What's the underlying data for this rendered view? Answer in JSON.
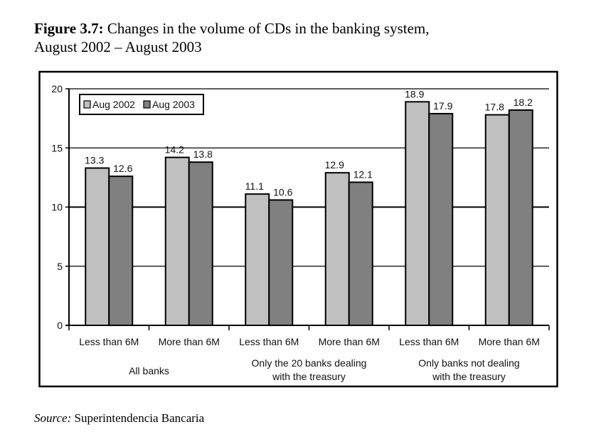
{
  "figure": {
    "label": "Figure 3.7:",
    "title_line1": " Changes in the volume of CDs in the banking system,",
    "title_line2": "August 2002 – August 2003"
  },
  "source": {
    "label": "Source:",
    "text": " Superintendencia Bancaria"
  },
  "chart_data": {
    "type": "bar",
    "title": "Changes in the volume of CDs in the banking system, August 2002 – August 2003",
    "xlabel": "",
    "ylabel": "",
    "ylim": [
      0,
      20
    ],
    "yticks": [
      0,
      5,
      10,
      15,
      20
    ],
    "grid": true,
    "legend_position": "top-left",
    "categories": [
      "Less than 6M",
      "More than 6M",
      "Less than 6M",
      "More than 6M",
      "Less than 6M",
      "More than 6M"
    ],
    "groups": [
      {
        "label_lines": [
          "All banks"
        ]
      },
      {
        "label_lines": [
          "Only the 20 banks dealing",
          "with the treasury"
        ]
      },
      {
        "label_lines": [
          "Only banks not dealing",
          "with the treasury"
        ]
      }
    ],
    "series": [
      {
        "name": "Aug 2002",
        "color": "#c0c0c0",
        "values": [
          13.3,
          14.2,
          11.1,
          12.9,
          18.9,
          17.8
        ],
        "labels": [
          "13.3",
          "14.2",
          "11.1",
          "12.9",
          "18.9",
          "17.8"
        ]
      },
      {
        "name": "Aug 2003",
        "color": "#808080",
        "values": [
          12.6,
          13.8,
          10.6,
          12.1,
          17.9,
          18.2
        ],
        "labels": [
          "12.6",
          "13.8",
          "10.6",
          "12.1",
          "17.9",
          "18.2"
        ]
      }
    ]
  }
}
